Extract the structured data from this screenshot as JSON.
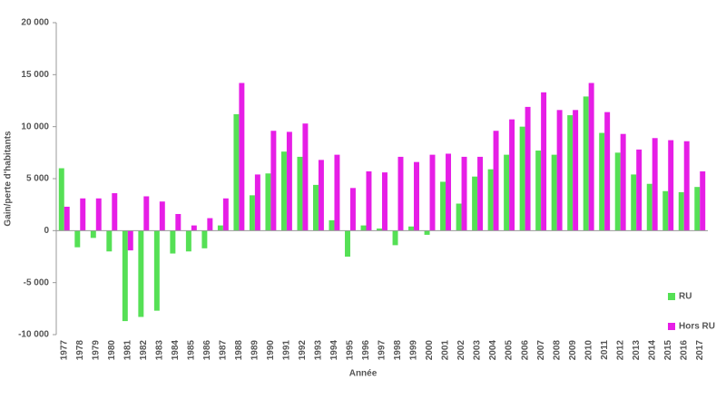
{
  "chart_data": {
    "type": "bar",
    "x_label": "Année",
    "y_label": "Gain/perte d'habitants",
    "categories": [
      "1977",
      "1978",
      "1979",
      "1980",
      "1981",
      "1982",
      "1983",
      "1984",
      "1985",
      "1986",
      "1987",
      "1988",
      "1989",
      "1990",
      "1991",
      "1992",
      "1993",
      "1994",
      "1995",
      "1996",
      "1997",
      "1998",
      "1999",
      "2000",
      "2001",
      "2002",
      "2003",
      "2004",
      "2005",
      "2006",
      "2007",
      "2008",
      "2009",
      "2010",
      "2011",
      "2012",
      "2013",
      "2014",
      "2015",
      "2016",
      "2017"
    ],
    "series": [
      {
        "name": "RU",
        "color": "#55e055",
        "values": [
          6000,
          -1600,
          -700,
          -2000,
          -8700,
          -8300,
          -7700,
          -2200,
          -2000,
          -1700,
          500,
          11200,
          3400,
          5500,
          7600,
          7100,
          4400,
          1000,
          -2500,
          500,
          200,
          -1400,
          400,
          -400,
          4700,
          2600,
          5200,
          5900,
          7300,
          10000,
          7700,
          7300,
          11100,
          12900,
          9400,
          7500,
          5400,
          4500,
          3800,
          3700,
          4200
        ]
      },
      {
        "name": "Hors RU",
        "color": "#e61ee6",
        "values": [
          2300,
          3100,
          3100,
          3600,
          -1900,
          3300,
          2800,
          1600,
          500,
          1200,
          3100,
          14200,
          5400,
          9600,
          9500,
          10300,
          6800,
          7300,
          4100,
          5700,
          5600,
          7100,
          6600,
          7300,
          7400,
          7100,
          7100,
          9600,
          10700,
          11900,
          13300,
          11600,
          11600,
          14200,
          11400,
          9300,
          7800,
          8900,
          8700,
          8600,
          5700
        ]
      }
    ],
    "ylim": [
      -10000,
      20000
    ],
    "yticks": [
      {
        "value": -10000,
        "label": "-10 000"
      },
      {
        "value": -5000,
        "label": "-5 000"
      },
      0,
      {
        "value": 5000,
        "label": "5 000"
      },
      {
        "value": 10000,
        "label": "10 000"
      },
      {
        "value": 15000,
        "label": "15 000"
      },
      {
        "value": 20000,
        "label": "20 000"
      }
    ],
    "legend": "right"
  }
}
